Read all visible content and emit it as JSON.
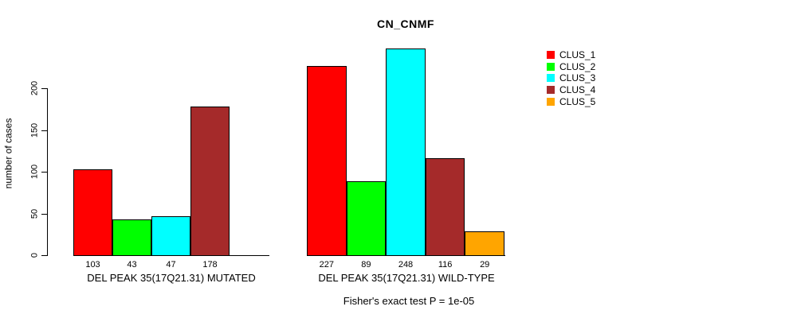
{
  "chart_data": {
    "type": "bar",
    "title": "CN_CNMF",
    "ylabel": "number of cases",
    "ylim": [
      0,
      200
    ],
    "yticks": [
      0,
      50,
      100,
      150,
      200
    ],
    "grid": false,
    "series_colors": [
      "#FF0000",
      "#00FF00",
      "#00FFFF",
      "#A52A2A",
      "#FFA500"
    ],
    "legend": {
      "position": "right",
      "entries": [
        {
          "label": "CLUS_1",
          "color": "#FF0000"
        },
        {
          "label": "CLUS_2",
          "color": "#00FF00"
        },
        {
          "label": "CLUS_3",
          "color": "#00FFFF"
        },
        {
          "label": "CLUS_4",
          "color": "#A52A2A"
        },
        {
          "label": "CLUS_5",
          "color": "#FFA500"
        }
      ]
    },
    "groups": [
      {
        "label": "DEL PEAK 35(17Q21.31) MUTATED",
        "values": [
          103,
          43,
          47,
          178,
          0
        ],
        "value_labels": [
          "103",
          "43",
          "47",
          "178",
          ""
        ]
      },
      {
        "label": "DEL PEAK 35(17Q21.31) WILD-TYPE",
        "values": [
          227,
          89,
          248,
          116,
          29
        ],
        "value_labels": [
          "227",
          "89",
          "248",
          "116",
          "29"
        ]
      }
    ],
    "annotation": "Fisher's exact test P = 1e-05"
  }
}
